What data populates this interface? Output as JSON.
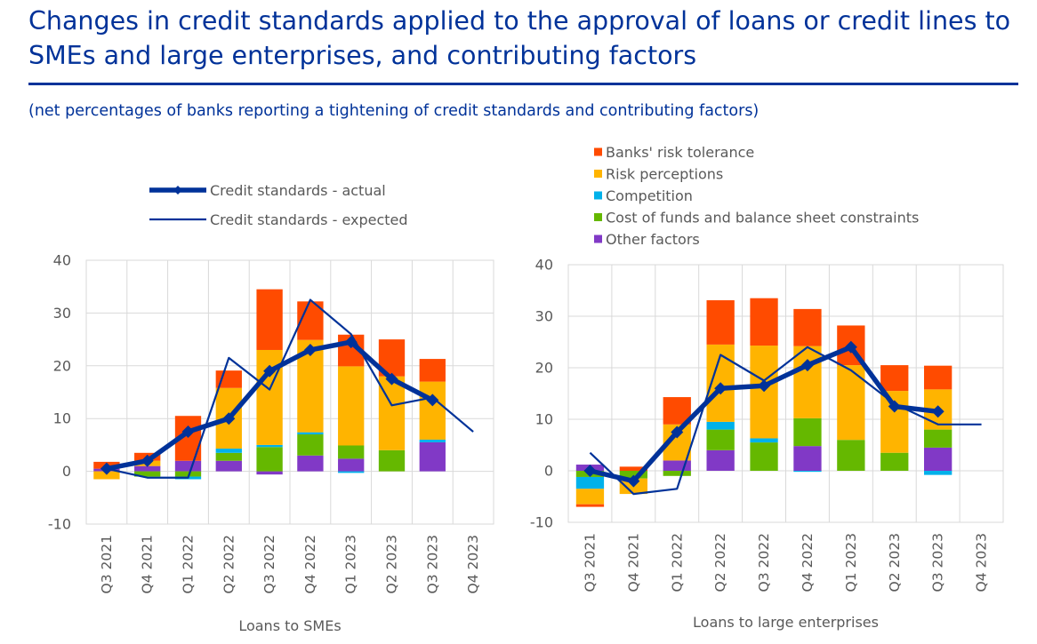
{
  "title": "Changes in credit standards applied to the approval of loans or credit lines to SMEs and large enterprises, and contributing factors",
  "subtitle": "(net percentages of banks reporting a tightening of credit standards and contributing factors)",
  "legend_lines": [
    {
      "label": "Credit standards - actual"
    },
    {
      "label": "Credit standards - expected"
    }
  ],
  "legend_bars": [
    {
      "label": "Banks' risk tolerance",
      "color": "#ff4b00"
    },
    {
      "label": "Risk perceptions",
      "color": "#ffb400"
    },
    {
      "label": "Competition",
      "color": "#00b1ea"
    },
    {
      "label": "Cost of funds and balance sheet constraints",
      "color": "#65b800"
    },
    {
      "label": "Other factors",
      "color": "#8139c6"
    }
  ],
  "colors": {
    "actual": "#003299",
    "expected": "#003299",
    "grid": "#d9d9d9",
    "axis_text": "#595959"
  },
  "chart_data": [
    {
      "type": "bar",
      "stacked": true,
      "xlabel": "Loans to SMEs",
      "ylim": [
        -10,
        40
      ],
      "yticks": [
        -10,
        0,
        10,
        20,
        30,
        40
      ],
      "categories": [
        "Q3 2021",
        "Q4 2021",
        "Q1 2022",
        "Q2 2022",
        "Q3 2022",
        "Q4 2022",
        "Q1 2023",
        "Q2 2023",
        "Q3 2023",
        "Q4 2023"
      ],
      "series": [
        {
          "name": "Other factors",
          "values": [
            0.5,
            1,
            2,
            2,
            -0.6,
            3,
            2.4,
            0,
            5.5,
            null
          ]
        },
        {
          "name": "Cost of funds and balance sheet constraints",
          "values": [
            0,
            -1,
            -1,
            1.5,
            4.6,
            4,
            2.5,
            4,
            0,
            null
          ]
        },
        {
          "name": "Competition",
          "values": [
            0,
            0,
            -0.5,
            0.8,
            0.4,
            0.4,
            -0.3,
            0,
            0.5,
            null
          ]
        },
        {
          "name": "Risk perceptions",
          "values": [
            -1.5,
            1,
            0,
            11.5,
            18,
            17.5,
            15,
            14,
            11,
            null
          ]
        },
        {
          "name": "Banks' risk tolerance",
          "values": [
            1.3,
            1.5,
            8.5,
            3.3,
            11.5,
            7.3,
            6,
            7,
            4.3,
            null
          ]
        }
      ],
      "lines": [
        {
          "name": "Credit standards - actual",
          "values": [
            0.5,
            2,
            7.5,
            10,
            19,
            23,
            24.5,
            17.5,
            13.5,
            null
          ]
        },
        {
          "name": "Credit standards - expected",
          "values": [
            0.5,
            -1.2,
            -1.2,
            21.5,
            15.5,
            32.5,
            26,
            12.5,
            14,
            7.5
          ]
        }
      ]
    },
    {
      "type": "bar",
      "stacked": true,
      "xlabel": "Loans to large enterprises",
      "ylim": [
        -10,
        40
      ],
      "yticks": [
        -10,
        0,
        10,
        20,
        30,
        40
      ],
      "categories": [
        "Q3 2021",
        "Q4 2021",
        "Q1 2022",
        "Q2 2022",
        "Q3 2022",
        "Q4 2022",
        "Q1 2023",
        "Q2 2023",
        "Q3 2023",
        "Q4 2023"
      ],
      "series": [
        {
          "name": "Other factors",
          "values": [
            1.2,
            0,
            2,
            4,
            0,
            4.8,
            0,
            0,
            4.5,
            null
          ]
        },
        {
          "name": "Cost of funds and balance sheet constraints",
          "values": [
            -1.2,
            -1.5,
            -1,
            4,
            5.5,
            5.4,
            6,
            3.5,
            3.5,
            null
          ]
        },
        {
          "name": "Competition",
          "values": [
            -2.3,
            0,
            0,
            1.5,
            0.8,
            -0.2,
            0,
            0,
            -0.8,
            null
          ]
        },
        {
          "name": "Risk perceptions",
          "values": [
            -3,
            -3,
            7,
            15,
            18,
            14,
            14.5,
            12,
            7.8,
            null
          ]
        },
        {
          "name": "Banks' risk tolerance",
          "values": [
            -0.5,
            0.8,
            5.3,
            8.6,
            9.2,
            7.2,
            7.7,
            5,
            4.6,
            null
          ]
        }
      ],
      "lines": [
        {
          "name": "Credit standards - actual",
          "values": [
            0,
            -2,
            7.5,
            16,
            16.5,
            20.5,
            24,
            12.5,
            11.5,
            null
          ]
        },
        {
          "name": "Credit standards - expected",
          "values": [
            3.5,
            -4.5,
            -3.5,
            22.5,
            17.5,
            24,
            19.5,
            13,
            9,
            9
          ]
        }
      ]
    }
  ]
}
